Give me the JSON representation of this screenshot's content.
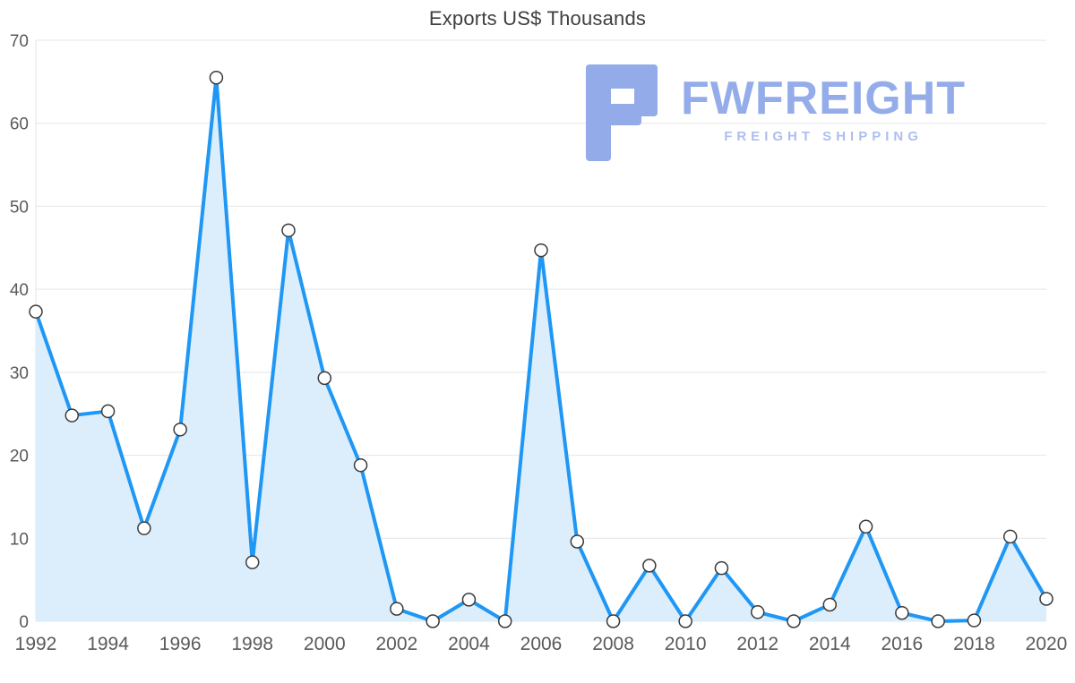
{
  "title": "Exports US$ Thousands",
  "logo": {
    "name": "FWFREIGHT",
    "tagline": "FREIGHT SHIPPING",
    "icon": "freight-f-mark",
    "color": "#8ca7e9"
  },
  "chart_data": {
    "type": "area",
    "title": "Exports US$ Thousands",
    "xlabel": "",
    "ylabel": "",
    "x": [
      1992,
      1993,
      1994,
      1995,
      1996,
      1997,
      1998,
      1999,
      2000,
      2001,
      2002,
      2003,
      2004,
      2005,
      2006,
      2007,
      2008,
      2009,
      2010,
      2011,
      2012,
      2013,
      2014,
      2015,
      2016,
      2017,
      2018,
      2019,
      2020
    ],
    "values": [
      37.3,
      24.8,
      25.3,
      11.2,
      23.1,
      65.5,
      7.1,
      47.1,
      29.3,
      18.8,
      1.5,
      0,
      2.6,
      0,
      44.7,
      9.6,
      0,
      6.7,
      0,
      6.4,
      1.1,
      0,
      2.0,
      11.4,
      1.0,
      0,
      0.1,
      10.2,
      2.7
    ],
    "ylim": [
      0,
      70
    ],
    "y_ticks": [
      0,
      10,
      20,
      30,
      40,
      50,
      60,
      70
    ],
    "x_tick_step": 2,
    "grid": true,
    "legend": "none",
    "colors": {
      "line": "#1f97f4",
      "fill": "#dcedfc",
      "marker_fill": "#ffffff",
      "marker_stroke": "#3a3a3a",
      "grid": "#e4e4e4",
      "axis_text": "#5a5a5a"
    }
  }
}
